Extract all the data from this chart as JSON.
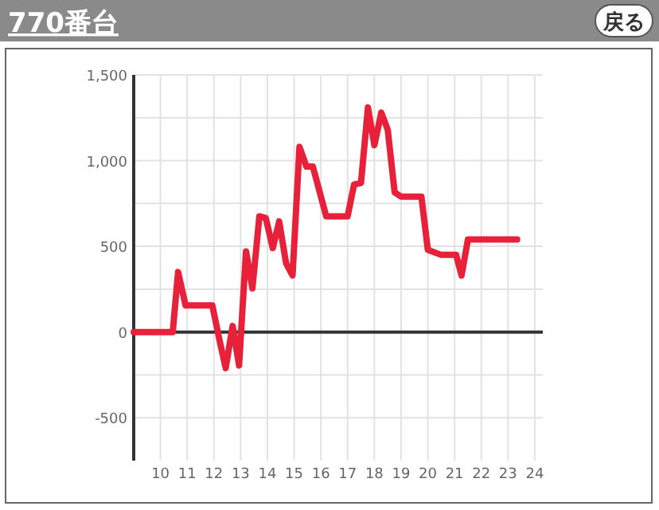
{
  "chart_data": {
    "type": "line",
    "title": "770番台",
    "annotations": [
      "戻る"
    ],
    "x": [
      9.0,
      10.46,
      10.66,
      10.94,
      11.94,
      12.24,
      12.44,
      12.7,
      12.94,
      13.2,
      13.44,
      13.7,
      13.94,
      14.2,
      14.44,
      14.7,
      14.94,
      15.2,
      15.46,
      15.7,
      16.2,
      17.0,
      17.24,
      17.5,
      17.76,
      18.0,
      18.26,
      18.5,
      18.76,
      19.0,
      19.76,
      20.0,
      20.5,
      21.06,
      21.26,
      21.5,
      23.34
    ],
    "series": [
      {
        "color": "#e8213a",
        "values": [
          0,
          0,
          350,
          155,
          155,
          -70,
          -210,
          35,
          -195,
          470,
          255,
          675,
          665,
          490,
          645,
          400,
          330,
          1080,
          965,
          965,
          675,
          675,
          860,
          870,
          1310,
          1090,
          1280,
          1180,
          815,
          790,
          790,
          480,
          450,
          450,
          330,
          540,
          540
        ]
      }
    ],
    "xlim": [
      9,
      24.3
    ],
    "ylim": [
      -750,
      1500
    ],
    "xticks": [
      10,
      11,
      12,
      13,
      14,
      15,
      16,
      17,
      18,
      19,
      20,
      21,
      22,
      23,
      24
    ],
    "yticks": [
      {
        "value": -500,
        "label": "-500"
      },
      0,
      {
        "value": 500,
        "label": "500"
      },
      {
        "value": 1000,
        "label": "1,000"
      },
      {
        "value": 1500,
        "label": "1,500"
      }
    ],
    "grid": true,
    "marker": "none",
    "line_style": "solid"
  }
}
